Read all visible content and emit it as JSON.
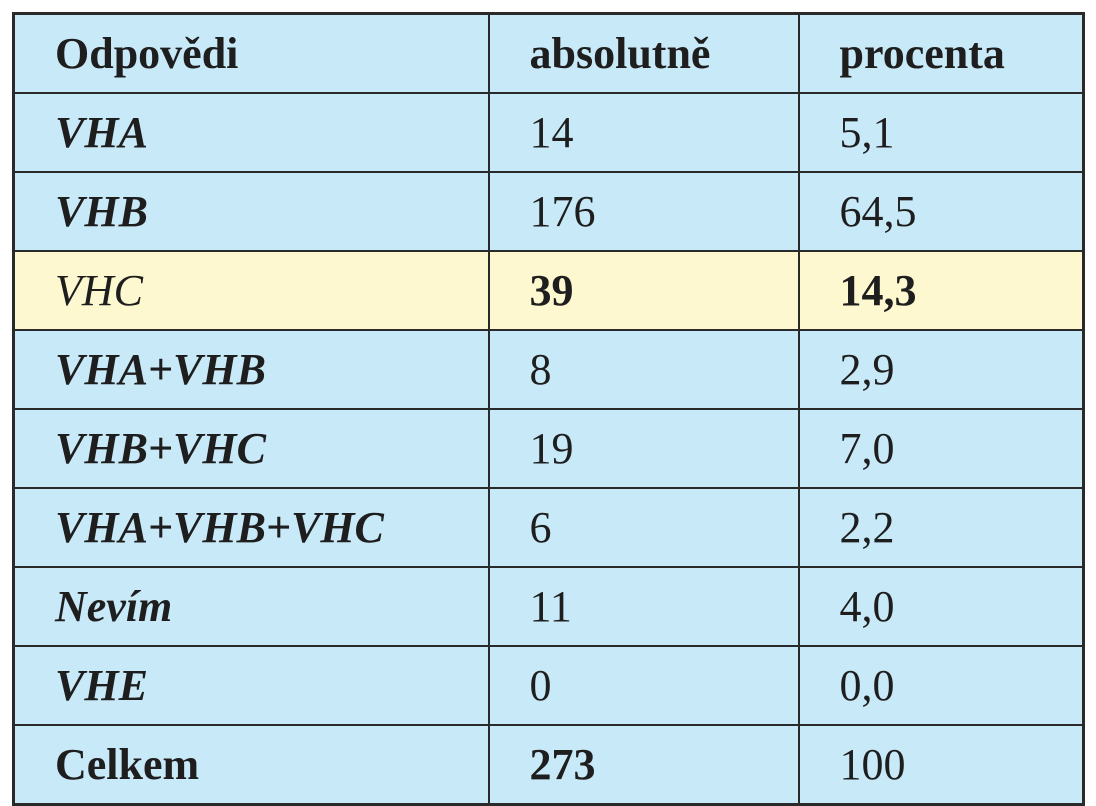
{
  "table": {
    "header": [
      "Odpovědi",
      "absolutně",
      "procenta"
    ],
    "rows": [
      [
        "VHA",
        "14",
        "5,1"
      ],
      [
        "VHB",
        "176",
        "64,5"
      ],
      [
        "VHC",
        "39",
        "14,3"
      ],
      [
        "VHA+VHB",
        "8",
        "2,9"
      ],
      [
        "VHB+VHC",
        "19",
        "7,0"
      ],
      [
        "VHA+VHB+VHC",
        "6",
        "2,2"
      ],
      [
        "Nevím",
        "11",
        "4,0"
      ],
      [
        "VHE",
        "0",
        "0,0"
      ],
      [
        "Celkem",
        "273",
        "100"
      ]
    ]
  }
}
